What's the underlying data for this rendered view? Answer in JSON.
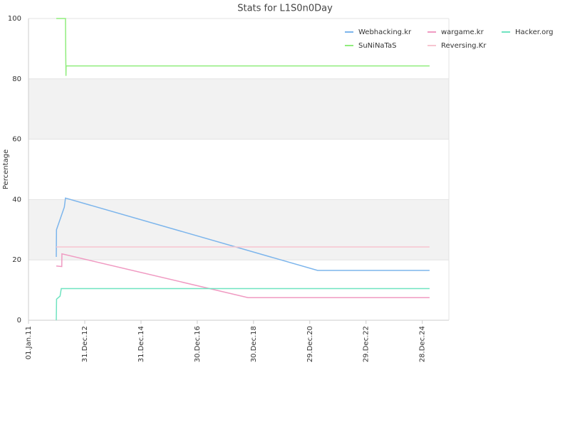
{
  "chart_data": {
    "type": "line",
    "title": "Stats for L1S0n0Day",
    "ylabel": "Percentage",
    "xlim": [
      "2011-01-01",
      "2025-12-08"
    ],
    "xticks": [
      {
        "value": "2011-01-01",
        "label": "01.Jan.11"
      },
      {
        "value": "2012-12-31",
        "label": "31.Dec.12"
      },
      {
        "value": "2014-12-31",
        "label": "31.Dec.14"
      },
      {
        "value": "2016-12-30",
        "label": "30.Dec.16"
      },
      {
        "value": "2018-12-30",
        "label": "30.Dec.18"
      },
      {
        "value": "2020-12-29",
        "label": "29.Dec.20"
      },
      {
        "value": "2022-12-29",
        "label": "29.Dec.22"
      },
      {
        "value": "2024-12-28",
        "label": "28.Dec.24"
      }
    ],
    "ylim": [
      0,
      100
    ],
    "yticks": [
      0,
      20,
      40,
      60,
      80,
      100
    ],
    "grid": true,
    "legend": "top-right",
    "series": [
      {
        "name": "Webhacking.kr",
        "color": "#7cb5ec",
        "x": [
          "2011-12-28",
          "2011-12-30",
          "2012-04-10",
          "2012-04-25",
          "2021-04-10",
          "2025-04-01"
        ],
        "values": [
          21,
          30,
          37.5,
          40.5,
          16.5,
          16.5
        ]
      },
      {
        "name": "wargame.kr",
        "color": "#f09ac2",
        "x": [
          "2011-12-28",
          "2012-03-08",
          "2012-03-10",
          "2018-10-20",
          "2025-04-01"
        ],
        "values": [
          18,
          17.8,
          22,
          7.5,
          7.5
        ]
      },
      {
        "name": "Hacker.org",
        "color": "#6fe3c0",
        "x": [
          "2011-12-28",
          "2011-12-31",
          "2012-02-15",
          "2012-03-01",
          "2025-04-01"
        ],
        "values": [
          0,
          7,
          8,
          10.5,
          10.5
        ]
      },
      {
        "name": "SuNiNaTaS",
        "color": "#90ed7d",
        "x": [
          "2011-12-28",
          "2012-04-25",
          "2012-04-28",
          "2012-05-01",
          "2012-05-03",
          "2025-04-01"
        ],
        "values": [
          100,
          100,
          90,
          81,
          84.3,
          84.3
        ]
      },
      {
        "name": "Reversing.Kr",
        "color": "#f7c5d0",
        "x": [
          "2011-12-28",
          "2025-04-01"
        ],
        "values": [
          24.3,
          24.3
        ]
      }
    ]
  }
}
